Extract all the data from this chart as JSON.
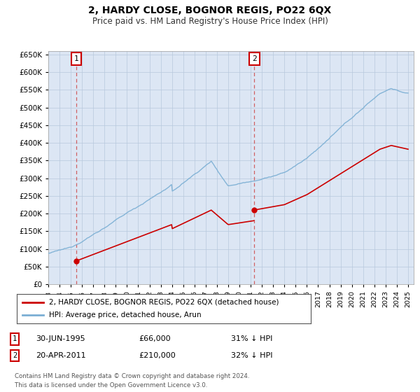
{
  "title": "2, HARDY CLOSE, BOGNOR REGIS, PO22 6QX",
  "subtitle": "Price paid vs. HM Land Registry's House Price Index (HPI)",
  "hpi_color": "#7bafd4",
  "price_color": "#cc0000",
  "point_color": "#cc0000",
  "bg_color": "#ffffff",
  "plot_bg": "#e8eef8",
  "grid_color": "#c0c8d8",
  "ylim": [
    0,
    660000
  ],
  "yticks": [
    0,
    50000,
    100000,
    150000,
    200000,
    250000,
    300000,
    350000,
    400000,
    450000,
    500000,
    550000,
    600000,
    650000
  ],
  "legend_label_price": "2, HARDY CLOSE, BOGNOR REGIS, PO22 6QX (detached house)",
  "legend_label_hpi": "HPI: Average price, detached house, Arun",
  "transaction1_date": "30-JUN-1995",
  "transaction1_price": "£66,000",
  "transaction1_hpi": "31% ↓ HPI",
  "transaction1_x": 1995.5,
  "transaction2_date": "20-APR-2011",
  "transaction2_price": "£210,000",
  "transaction2_hpi": "32% ↓ HPI",
  "transaction2_x": 2011.33,
  "transaction1_y": 66000,
  "transaction2_y": 210000,
  "footer": "Contains HM Land Registry data © Crown copyright and database right 2024.\nThis data is licensed under the Open Government Licence v3.0.",
  "xmin": 1993,
  "xmax": 2025.5
}
